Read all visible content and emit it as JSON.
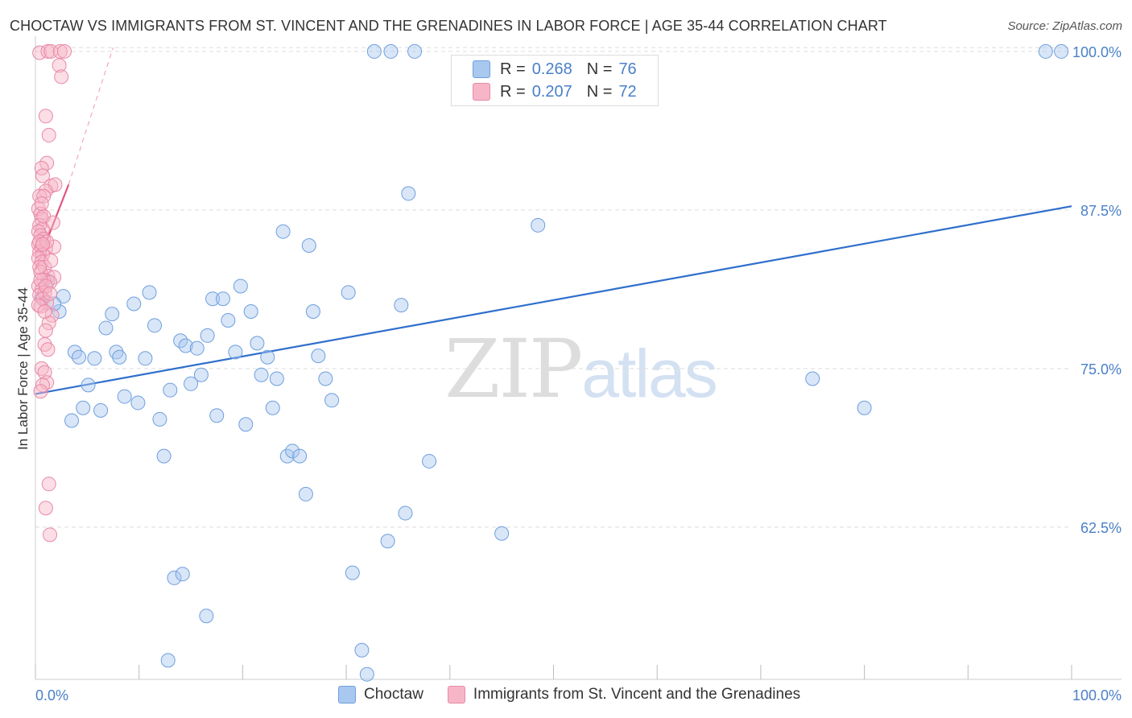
{
  "title": "CHOCTAW VS IMMIGRANTS FROM ST. VINCENT AND THE GRENADINES IN LABOR FORCE | AGE 35-44 CORRELATION CHART",
  "source": "Source: ZipAtlas.com",
  "watermark": {
    "zip": "ZIP",
    "atlas": "atlas"
  },
  "legend_top": {
    "rows": [
      {
        "r_label": "R =",
        "r_value": "0.268",
        "n_label": "N =",
        "n_value": "76",
        "color": "#a9c8f0"
      },
      {
        "r_label": "R =",
        "r_value": "0.207",
        "n_label": "N =",
        "n_value": "72",
        "color": "#f6b6c8"
      }
    ]
  },
  "chart_data": {
    "type": "scatter",
    "title": "CHOCTAW VS IMMIGRANTS FROM ST. VINCENT AND THE GRENADINES IN LABOR FORCE | AGE 35-44 CORRELATION CHART",
    "xlabel": "",
    "ylabel": "In Labor Force | Age 35-44",
    "xlim": [
      0,
      100
    ],
    "ylim": [
      50.5,
      101.2
    ],
    "x_tick_labels": [
      "0.0%",
      "100.0%"
    ],
    "y_ticks": [
      {
        "value": 100.0,
        "label": "100.0%"
      },
      {
        "value": 87.5,
        "label": "87.5%"
      },
      {
        "value": 75.0,
        "label": "75.0%"
      },
      {
        "value": 62.5,
        "label": "62.5%"
      }
    ],
    "grid": true,
    "series": [
      {
        "name": "Choctaw",
        "color": "#a9c8f0",
        "stroke": "#6f9fdd",
        "trend": {
          "x": [
            0,
            100
          ],
          "y": [
            73.0,
            87.8
          ],
          "color": "#2f6fcc"
        },
        "points": [
          [
            0.6,
            80.6
          ],
          [
            1.2,
            81.9
          ],
          [
            2.3,
            79.5
          ],
          [
            2.7,
            80.7
          ],
          [
            1.8,
            80.1
          ],
          [
            3.5,
            70.9
          ],
          [
            3.8,
            76.3
          ],
          [
            4.2,
            75.9
          ],
          [
            4.6,
            71.9
          ],
          [
            5.1,
            73.7
          ],
          [
            5.7,
            75.8
          ],
          [
            6.3,
            71.7
          ],
          [
            6.8,
            78.2
          ],
          [
            7.4,
            79.3
          ],
          [
            7.8,
            76.3
          ],
          [
            8.1,
            75.9
          ],
          [
            8.6,
            72.8
          ],
          [
            9.5,
            80.1
          ],
          [
            9.9,
            72.3
          ],
          [
            10.6,
            75.8
          ],
          [
            11.0,
            81.0
          ],
          [
            11.5,
            78.4
          ],
          [
            12.0,
            71.0
          ],
          [
            12.4,
            68.1
          ],
          [
            13.0,
            73.3
          ],
          [
            13.4,
            58.5
          ],
          [
            14.0,
            77.2
          ],
          [
            14.5,
            76.8
          ],
          [
            15.0,
            73.8
          ],
          [
            15.6,
            76.6
          ],
          [
            16.0,
            74.5
          ],
          [
            16.6,
            77.6
          ],
          [
            17.1,
            80.5
          ],
          [
            17.5,
            71.3
          ],
          [
            18.1,
            80.5
          ],
          [
            18.6,
            78.8
          ],
          [
            19.3,
            76.3
          ],
          [
            19.8,
            81.5
          ],
          [
            20.3,
            70.6
          ],
          [
            20.8,
            79.5
          ],
          [
            21.4,
            77.0
          ],
          [
            21.8,
            74.5
          ],
          [
            22.4,
            75.9
          ],
          [
            22.9,
            71.9
          ],
          [
            23.3,
            74.2
          ],
          [
            23.9,
            85.8
          ],
          [
            24.3,
            68.1
          ],
          [
            24.8,
            68.5
          ],
          [
            25.5,
            68.1
          ],
          [
            26.1,
            65.1
          ],
          [
            26.4,
            84.7
          ],
          [
            26.8,
            79.5
          ],
          [
            27.3,
            76.0
          ],
          [
            28.0,
            74.2
          ],
          [
            28.6,
            72.5
          ],
          [
            16.5,
            55.5
          ],
          [
            14.2,
            58.8
          ],
          [
            12.8,
            52.0
          ],
          [
            30.2,
            81.0
          ],
          [
            30.6,
            58.9
          ],
          [
            31.5,
            52.8
          ],
          [
            32.0,
            50.9
          ],
          [
            34.0,
            61.4
          ],
          [
            35.3,
            80.0
          ],
          [
            35.7,
            63.6
          ],
          [
            36.0,
            88.8
          ],
          [
            38.0,
            67.7
          ],
          [
            45.0,
            62.0
          ],
          [
            48.5,
            86.3
          ],
          [
            32.7,
            100.0
          ],
          [
            34.3,
            100.0
          ],
          [
            36.6,
            100.0
          ],
          [
            75.0,
            74.2
          ],
          [
            80.0,
            71.9
          ],
          [
            97.5,
            100.0
          ],
          [
            99.0,
            100.0
          ]
        ]
      },
      {
        "name": "Immigrants from St. Vincent and the Grenadines",
        "color": "#f6b6c8",
        "stroke": "#e889a8",
        "trend": {
          "x": [
            0,
            3.2
          ],
          "y": [
            82.8,
            89.5
          ],
          "color": "#e2557e"
        },
        "trend_extension": {
          "x": [
            3.2,
            7.5
          ],
          "y": [
            89.5,
            100.3
          ],
          "color": "#f2a9bd"
        },
        "points": [
          [
            0.4,
            99.9
          ],
          [
            1.2,
            100.0
          ],
          [
            1.5,
            100.0
          ],
          [
            2.4,
            100.0
          ],
          [
            2.8,
            100.0
          ],
          [
            2.3,
            98.9
          ],
          [
            2.5,
            98.0
          ],
          [
            1.0,
            94.9
          ],
          [
            1.3,
            93.4
          ],
          [
            1.1,
            91.2
          ],
          [
            0.6,
            90.8
          ],
          [
            0.7,
            90.2
          ],
          [
            1.5,
            89.4
          ],
          [
            1.9,
            89.5
          ],
          [
            1.0,
            89.0
          ],
          [
            0.4,
            88.6
          ],
          [
            0.8,
            88.6
          ],
          [
            0.3,
            87.6
          ],
          [
            0.5,
            87.2
          ],
          [
            0.6,
            86.8
          ],
          [
            0.4,
            86.3
          ],
          [
            0.7,
            86.0
          ],
          [
            0.3,
            85.8
          ],
          [
            0.5,
            85.5
          ],
          [
            0.8,
            85.2
          ],
          [
            0.3,
            84.8
          ],
          [
            0.6,
            84.6
          ],
          [
            1.0,
            84.5
          ],
          [
            1.8,
            84.6
          ],
          [
            0.4,
            84.2
          ],
          [
            0.7,
            84.0
          ],
          [
            0.3,
            83.7
          ],
          [
            0.6,
            83.4
          ],
          [
            0.9,
            83.0
          ],
          [
            0.5,
            82.6
          ],
          [
            1.2,
            82.3
          ],
          [
            1.8,
            82.2
          ],
          [
            0.8,
            82.0
          ],
          [
            1.4,
            81.8
          ],
          [
            0.3,
            81.5
          ],
          [
            0.6,
            81.2
          ],
          [
            0.9,
            81.0
          ],
          [
            0.4,
            80.8
          ],
          [
            0.7,
            80.5
          ],
          [
            1.1,
            80.2
          ],
          [
            0.5,
            79.9
          ],
          [
            1.6,
            79.2
          ],
          [
            1.3,
            78.6
          ],
          [
            1.0,
            78.0
          ],
          [
            0.9,
            76.9
          ],
          [
            0.6,
            75.0
          ],
          [
            0.9,
            74.7
          ],
          [
            1.1,
            73.9
          ],
          [
            0.7,
            73.7
          ],
          [
            0.5,
            73.2
          ],
          [
            1.3,
            65.9
          ],
          [
            1.0,
            64.0
          ],
          [
            1.4,
            61.9
          ],
          [
            0.4,
            85.0
          ],
          [
            1.1,
            85.0
          ],
          [
            0.8,
            87.0
          ],
          [
            0.5,
            82.0
          ],
          [
            1.5,
            83.5
          ],
          [
            0.3,
            80.0
          ],
          [
            0.9,
            79.5
          ],
          [
            1.2,
            76.5
          ],
          [
            0.6,
            88.0
          ],
          [
            1.7,
            86.5
          ],
          [
            0.4,
            83.0
          ],
          [
            1.0,
            81.5
          ],
          [
            0.7,
            84.8
          ],
          [
            1.4,
            80.9
          ]
        ]
      }
    ]
  },
  "legend_bottom": [
    {
      "label": "Choctaw",
      "color": "#a9c8f0"
    },
    {
      "label": "Immigrants from St. Vincent and the Grenadines",
      "color": "#f6b6c8"
    }
  ]
}
